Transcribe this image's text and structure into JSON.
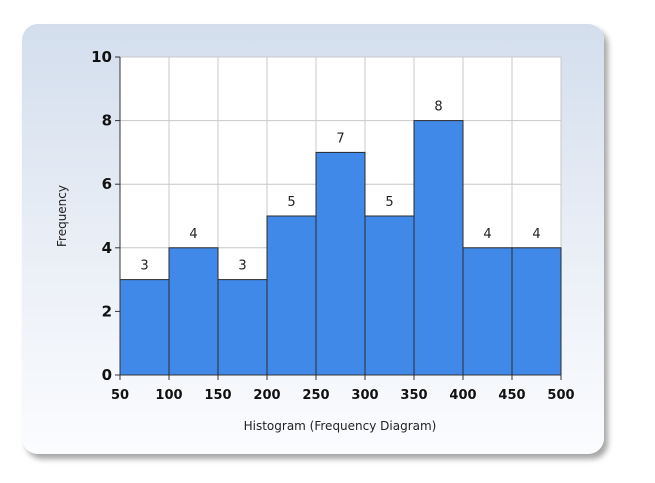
{
  "chart_data": {
    "type": "bar",
    "title": "",
    "xlabel": "Histogram (Frequency Diagram)",
    "ylabel": "Frequency",
    "bin_edges": [
      50,
      100,
      150,
      200,
      250,
      300,
      350,
      400,
      450,
      500
    ],
    "values": [
      3,
      4,
      3,
      5,
      7,
      5,
      8,
      4,
      4
    ],
    "xlim": [
      50,
      500
    ],
    "ylim": [
      0,
      10
    ],
    "yticks": [
      0,
      2,
      4,
      6,
      8,
      10
    ],
    "xticks": [
      50,
      100,
      150,
      200,
      250,
      300,
      350,
      400,
      450,
      500
    ],
    "grid": true,
    "data_labels": true,
    "colors": {
      "bar": "#4189e8",
      "bar_edge": "#2a2a2a",
      "grid": "#c8c8c8",
      "panel_top": "#d3deed"
    }
  }
}
